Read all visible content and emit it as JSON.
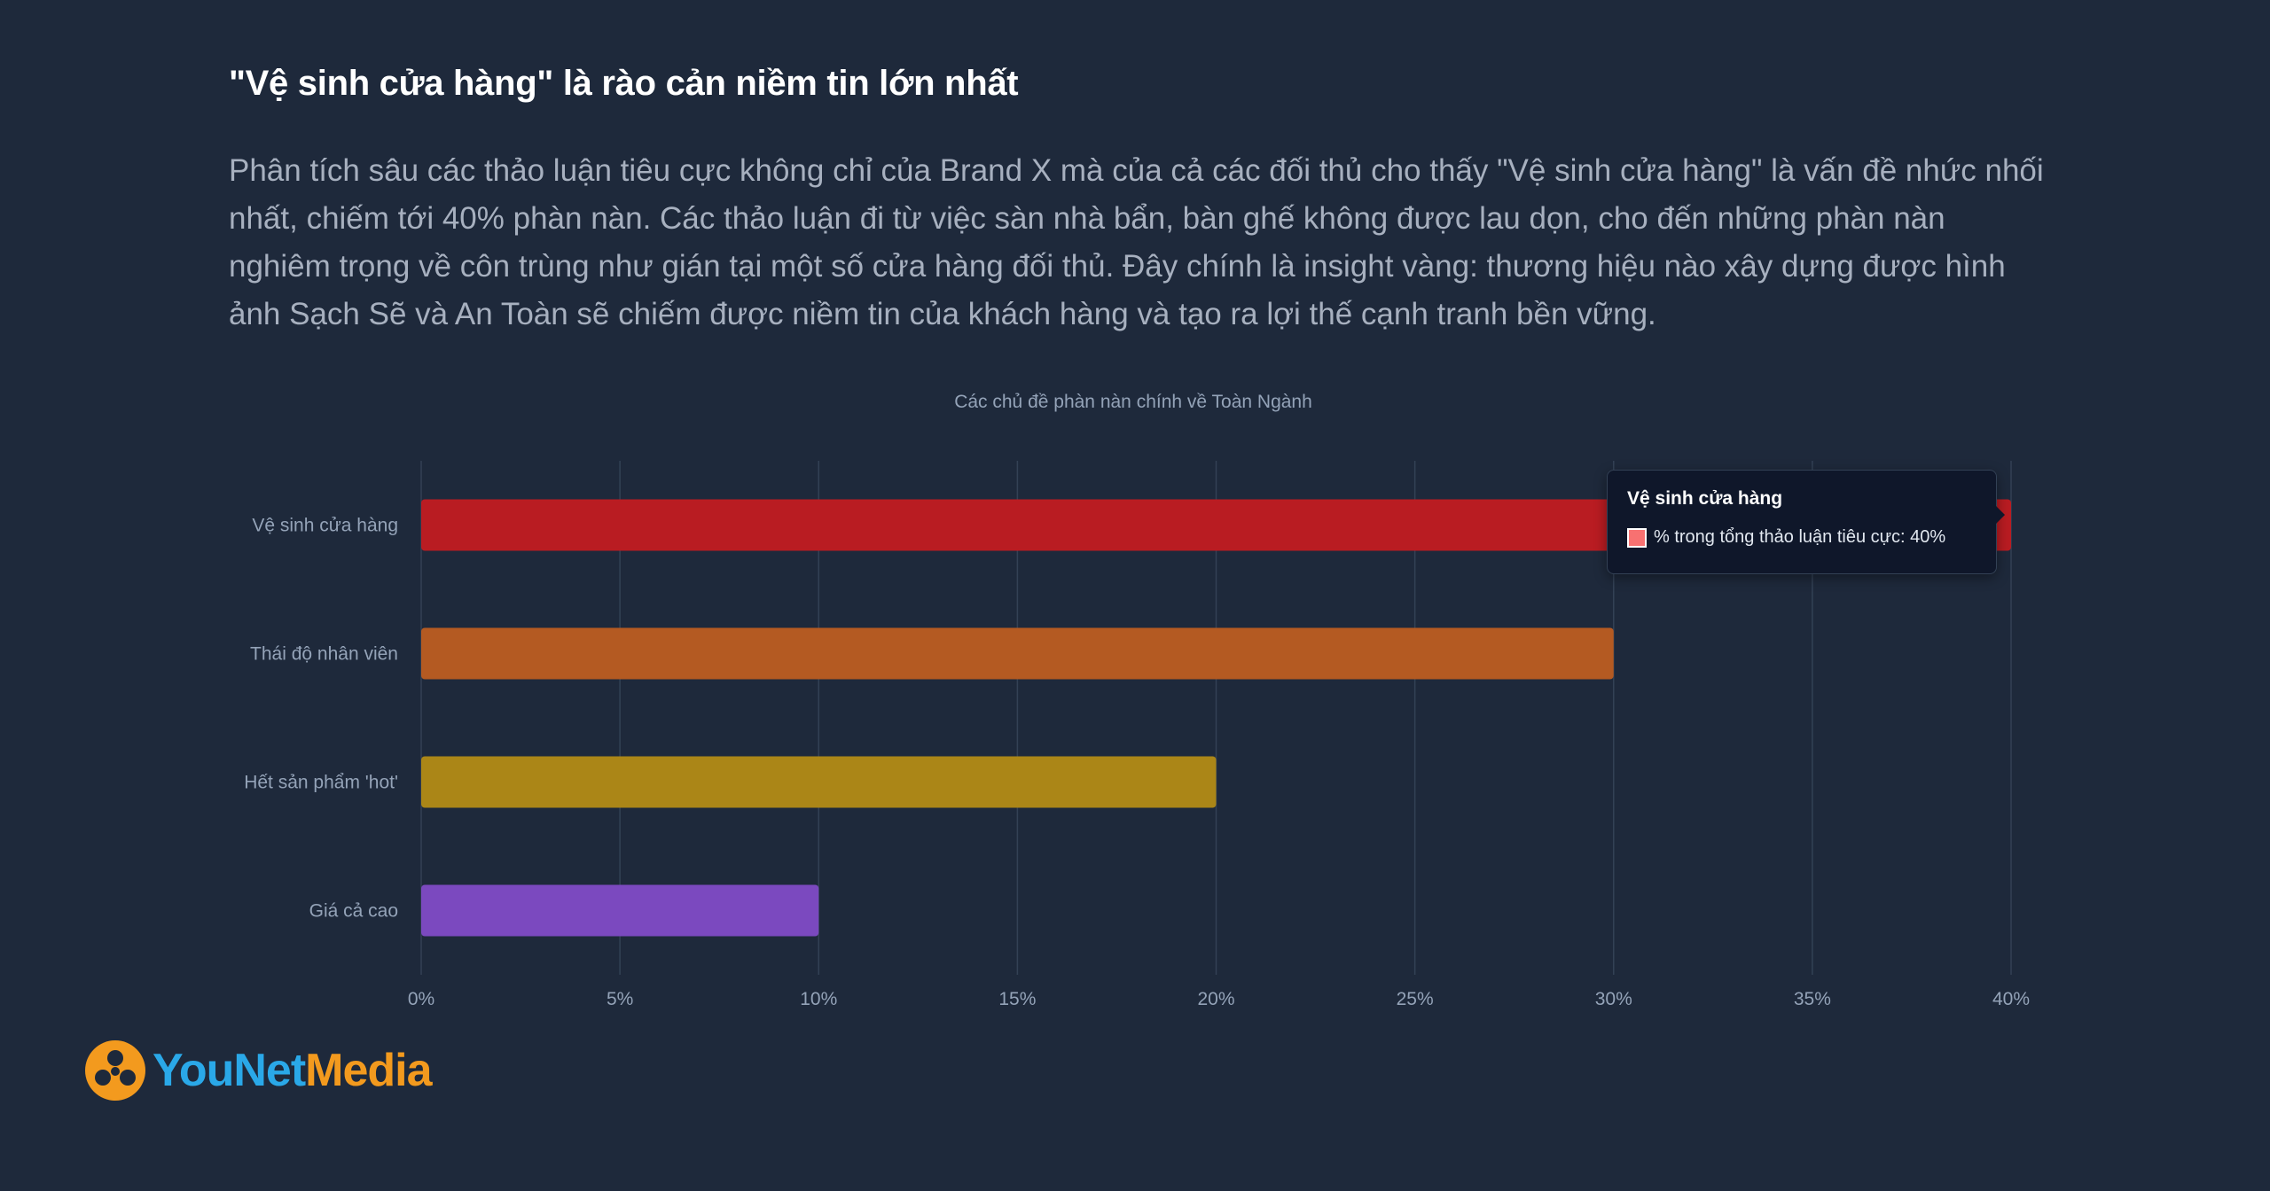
{
  "heading": "\"Vệ sinh cửa hàng\" là rào cản niềm tin lớn nhất",
  "body": "Phân tích sâu các thảo luận tiêu cực không chỉ của Brand X mà của cả các đối thủ cho thấy \"Vệ sinh cửa hàng\" là vấn đề nhức nhối nhất, chiếm tới 40% phàn nàn. Các thảo luận đi từ việc sàn nhà bẩn, bàn ghế không được lau dọn, cho đến những phàn nàn nghiêm trọng về côn trùng như gián tại một số cửa hàng đối thủ. Đây chính là insight vàng: thương hiệu nào xây dựng được hình ảnh Sạch Sẽ và An Toàn sẽ chiếm được niềm tin của khách hàng và tạo ra lợi thế cạnh tranh bền vững.",
  "chart_data": {
    "type": "bar",
    "orientation": "horizontal",
    "title": "Các chủ đề phàn nàn chính về Toàn Ngành",
    "categories": [
      "Vệ sinh cửa hàng",
      "Thái độ nhân viên",
      "Hết sản phẩm 'hot'",
      "Giá cả cao"
    ],
    "series": [
      {
        "name": "% trong tổng thảo luận tiêu cực",
        "values": [
          40,
          30,
          20,
          10
        ]
      }
    ],
    "colors": [
      "#b91c22",
      "#b45a22",
      "#ab8617",
      "#7b49bf"
    ],
    "x_ticks": [
      "0%",
      "5%",
      "10%",
      "15%",
      "20%",
      "25%",
      "30%",
      "35%",
      "40%"
    ],
    "xlim": [
      0,
      40
    ],
    "grid": true,
    "legend": "none"
  },
  "tooltip": {
    "title": "Vệ sinh cửa hàng",
    "label": "% trong tổng thảo luận tiêu cực: 40%",
    "swatch_color": "#f87171"
  },
  "logo": {
    "icon": "network-nodes-icon",
    "you": "YouNet",
    "media": "Media"
  }
}
